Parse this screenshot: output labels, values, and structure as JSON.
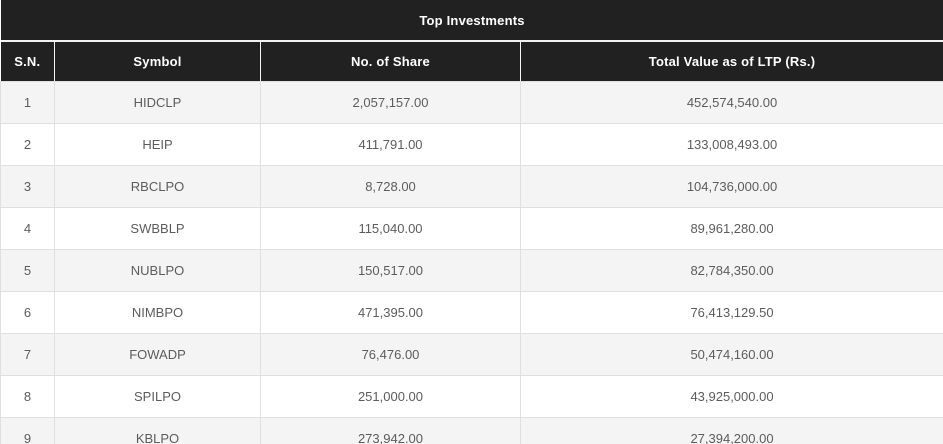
{
  "chart_data": {
    "type": "table",
    "title": "Top Investments",
    "columns": [
      "S.N.",
      "Symbol",
      "No. of Share",
      "Total Value as of LTP (Rs.)"
    ],
    "rows": [
      [
        "1",
        "HIDCLP",
        "2,057,157.00",
        "452,574,540.00"
      ],
      [
        "2",
        "HEIP",
        "411,791.00",
        "133,008,493.00"
      ],
      [
        "3",
        "RBCLPO",
        "8,728.00",
        "104,736,000.00"
      ],
      [
        "4",
        "SWBBLP",
        "115,040.00",
        "89,961,280.00"
      ],
      [
        "5",
        "NUBLPO",
        "150,517.00",
        "82,784,350.00"
      ],
      [
        "6",
        "NIMBPO",
        "471,395.00",
        "76,413,129.50"
      ],
      [
        "7",
        "FOWADP",
        "76,476.00",
        "50,474,160.00"
      ],
      [
        "8",
        "SPILPO",
        "251,000.00",
        "43,925,000.00"
      ],
      [
        "9",
        "KBLPO",
        "273,942.00",
        "27,394,200.00"
      ]
    ],
    "layout": {
      "legend": "none",
      "grid": "on",
      "row_striping": "odd-rows-gray"
    },
    "colors": {
      "header_bg": "#212121",
      "header_text": "#ffffff",
      "row_alt_bg": "#f4f4f4",
      "row_bg": "#ffffff",
      "body_text": "#5c5c5c",
      "grid_border": "#e0e0e0"
    },
    "cell_names": [
      "cell-sn",
      "cell-symbol",
      "cell-no-of-share",
      "cell-total-value"
    ]
  }
}
